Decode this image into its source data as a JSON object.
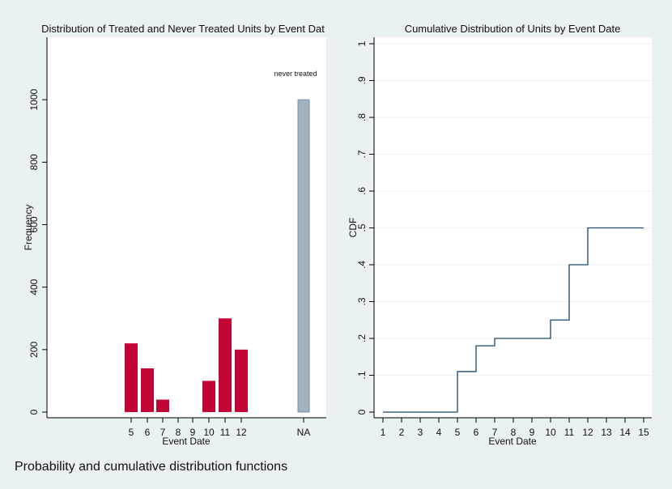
{
  "caption": "Probability and cumulative distribution functions",
  "colors": {
    "background": "#eaf1f3",
    "plot_background": "#ffffff",
    "treated_bar": "#c10534",
    "never_treated_bar": "#9fb2c2",
    "never_treated_edge": "#7f93a6",
    "cdf_line": "#1a476f",
    "grid": "#eaf1f3"
  },
  "chart_data": [
    {
      "type": "bar",
      "title": "Distribution of Treated and Never Treated Units by Event Dat",
      "xlabel": "Event Date",
      "ylabel": "Frequency",
      "x_tick_labels": [
        "5",
        "6",
        "7",
        "8",
        "9",
        "10",
        "11",
        "12",
        "NA"
      ],
      "y_ticks": [
        0,
        200,
        400,
        600,
        800,
        1000
      ],
      "y_tick_labels": [
        "0",
        "200",
        "400",
        "600",
        "800",
        "1000"
      ],
      "ylim": [
        0,
        1200
      ],
      "series": [
        {
          "categories": [
            "5",
            "6",
            "7",
            "8",
            "9",
            "10",
            "11",
            "12"
          ],
          "values": [
            220,
            140,
            40,
            0,
            0,
            100,
            300,
            200
          ]
        },
        {
          "categories": [
            "NA"
          ],
          "values": [
            1000
          ]
        }
      ],
      "annotations": [
        {
          "text": "never treated",
          "category": "NA"
        }
      ]
    },
    {
      "type": "line",
      "title": "Cumulative Distribution of Units by Event Date",
      "xlabel": "Event Date",
      "ylabel": "CDF",
      "x_ticks": [
        1,
        2,
        3,
        4,
        5,
        6,
        7,
        8,
        9,
        10,
        11,
        12,
        13,
        14,
        15
      ],
      "y_ticks": [
        0,
        0.1,
        0.2,
        0.3,
        0.4,
        0.5,
        0.6,
        0.7,
        0.8,
        0.9,
        1
      ],
      "y_tick_labels": [
        "0",
        ".1",
        ".2",
        ".3",
        ".4",
        ".5",
        ".6",
        ".7",
        ".8",
        ".9",
        "1"
      ],
      "xlim": [
        1,
        15
      ],
      "ylim": [
        0,
        1
      ],
      "grid": true,
      "step": true,
      "x": [
        1,
        2,
        3,
        4,
        5,
        6,
        7,
        8,
        9,
        10,
        11,
        12,
        13,
        14,
        15
      ],
      "y": [
        0,
        0,
        0,
        0,
        0.11,
        0.18,
        0.2,
        0.2,
        0.2,
        0.25,
        0.4,
        0.5,
        0.5,
        0.5,
        0.5
      ]
    }
  ]
}
